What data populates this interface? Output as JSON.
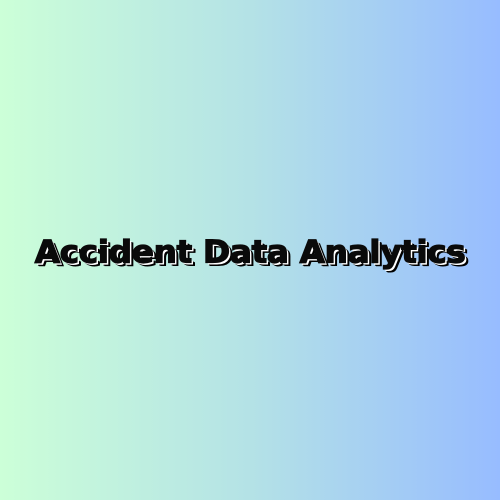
{
  "title": {
    "text": "Accident Data Analytics"
  },
  "colors": {
    "gradient_start": "#ccffd8",
    "gradient_end": "#97bcff",
    "text": "#0a0a0a"
  }
}
